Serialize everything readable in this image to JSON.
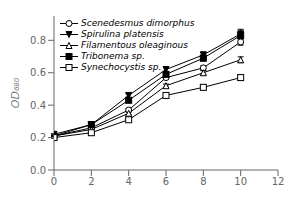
{
  "chart_data": {
    "type": "line",
    "ylabel": "OD₆₈₀",
    "x": [
      0,
      2,
      4,
      6,
      8,
      10
    ],
    "series": [
      {
        "name": "Scenedesmus dimorphus",
        "color": "black",
        "marker": "circle-open",
        "values": [
          0.21,
          0.26,
          0.37,
          0.57,
          0.63,
          0.79
        ],
        "yerr": [
          0.004,
          0.005,
          0.008,
          0.01,
          0.013,
          0.02
        ]
      },
      {
        "name": "Spirulina platensis",
        "color": "black",
        "marker": "triangle-down",
        "values": [
          0.22,
          0.28,
          0.46,
          0.62,
          0.71,
          0.84
        ],
        "yerr": [
          0.004,
          0.006,
          0.012,
          0.015,
          0.018,
          0.028
        ]
      },
      {
        "name": "Filamentous oleaginous",
        "color": "black",
        "marker": "triangle-up-open",
        "values": [
          0.21,
          0.25,
          0.35,
          0.52,
          0.6,
          0.68
        ],
        "yerr": [
          0.004,
          0.005,
          0.008,
          0.01,
          0.013,
          0.018
        ]
      },
      {
        "name": "Tribonema sp.",
        "color": "black",
        "marker": "square",
        "values": [
          0.21,
          0.28,
          0.43,
          0.59,
          0.69,
          0.83
        ],
        "yerr": [
          0.004,
          0.007,
          0.01,
          0.013,
          0.018,
          0.022
        ]
      },
      {
        "name": "Synechocystis sp.",
        "color": "black",
        "marker": "square-open",
        "values": [
          0.2,
          0.23,
          0.31,
          0.46,
          0.51,
          0.57
        ],
        "yerr": [
          0.004,
          0.005,
          0.007,
          0.01,
          0.013,
          0.018
        ]
      }
    ],
    "xlim": [
      0,
      12
    ],
    "xticks": [
      0,
      2,
      4,
      6,
      8,
      10,
      12
    ],
    "ylim": [
      0.0,
      0.95
    ],
    "yticks": [
      {
        "value": 0.0,
        "label": "0.0"
      },
      0.2,
      0.4,
      0.6,
      0.8
    ],
    "legend": "upper left",
    "grid": false
  }
}
